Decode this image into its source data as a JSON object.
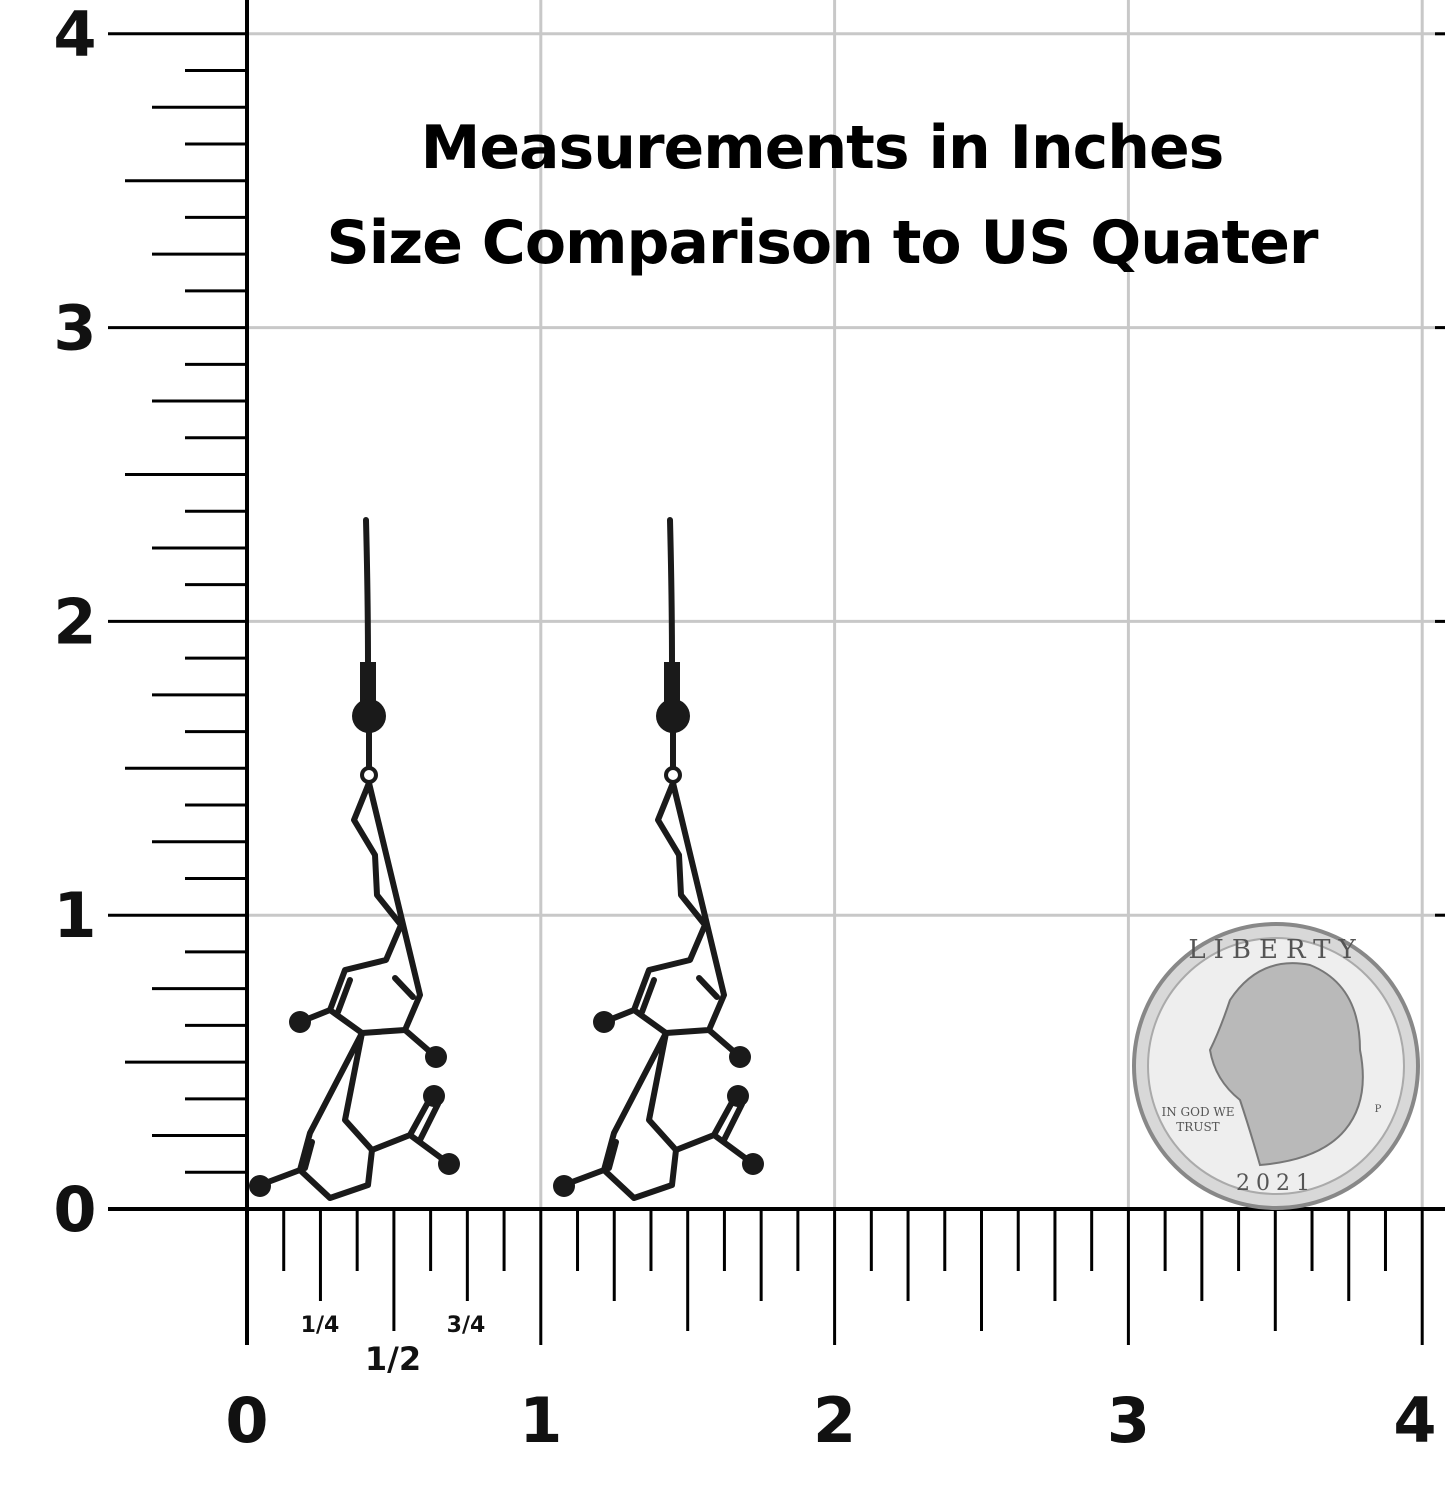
{
  "header": {
    "lines": [
      "Measurements in Inches",
      "Size Comparison to US Quater"
    ]
  },
  "ruler": {
    "vertical_labels": [
      "0",
      "1",
      "2",
      "3",
      "4"
    ],
    "horizontal_labels": [
      "0",
      "1",
      "2",
      "3",
      "4"
    ],
    "fraction_labels": [
      "1/4",
      "1/2",
      "3/4"
    ]
  },
  "coin": {
    "legend": "LIBERTY",
    "motto": [
      "IN GOD WE",
      "TRUST"
    ],
    "year": "2021",
    "mint": "P"
  }
}
